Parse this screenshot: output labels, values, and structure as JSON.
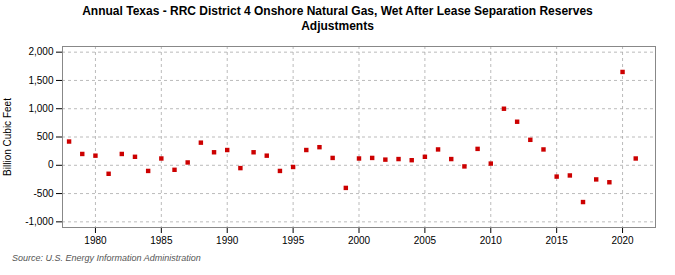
{
  "chart_data": {
    "type": "scatter",
    "title": "Annual Texas - RRC District 4 Onshore Natural Gas, Wet After Lease Separation Reserves\nAdjustments",
    "ylabel": "Billion Cubic Feet",
    "source": "Source: U.S. Energy Information Administration",
    "color": "#cc0000",
    "marker": "square",
    "grid": true,
    "xlim": [
      1977.5,
      2022.5
    ],
    "ylim": [
      -1100,
      2100
    ],
    "xticks": [
      1980,
      1985,
      1990,
      1995,
      2000,
      2005,
      2010,
      2015,
      2020
    ],
    "yticks": [
      {
        "value": -1000,
        "label": "-1,000"
      },
      -500,
      0,
      500,
      {
        "value": 1000,
        "label": "1,000"
      },
      {
        "value": 1500,
        "label": "1,500"
      },
      {
        "value": 2000,
        "label": "2,000"
      }
    ],
    "x": [
      1978,
      1979,
      1980,
      1981,
      1982,
      1983,
      1984,
      1985,
      1986,
      1987,
      1988,
      1989,
      1990,
      1991,
      1992,
      1993,
      1994,
      1995,
      1996,
      1997,
      1998,
      1999,
      2000,
      2001,
      2002,
      2003,
      2004,
      2005,
      2006,
      2007,
      2008,
      2009,
      2010,
      2011,
      2012,
      2013,
      2014,
      2015,
      2016,
      2017,
      2018,
      2019,
      2020,
      2021
    ],
    "values": [
      420,
      200,
      170,
      -150,
      200,
      150,
      -100,
      120,
      -80,
      50,
      400,
      230,
      270,
      -50,
      230,
      170,
      -100,
      -30,
      270,
      320,
      130,
      -400,
      120,
      130,
      100,
      110,
      90,
      150,
      280,
      110,
      -20,
      290,
      30,
      1000,
      770,
      450,
      280,
      -200,
      -180,
      -650,
      -250,
      -300,
      1650,
      120
    ]
  }
}
